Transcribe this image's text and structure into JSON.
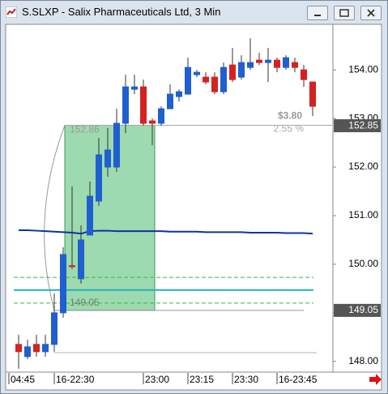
{
  "window_title": "S.SLXP - Salix Pharmaceuticals Ltd, 3 Min",
  "chart_data": {
    "type": "candlestick",
    "categories": [
      "04:45",
      null,
      null,
      null,
      "16-22:30",
      null,
      null,
      null,
      null,
      null,
      null,
      null,
      null,
      null,
      "23:00",
      null,
      null,
      null,
      null,
      "23:15",
      null,
      null,
      null,
      null,
      "23:30",
      null,
      null,
      null,
      null,
      "16-23:45",
      null,
      null,
      null,
      null
    ],
    "open": [
      148.35,
      148.1,
      148.35,
      148.2,
      148.35,
      149.0,
      149.97,
      149.7,
      150.6,
      151.3,
      152.0,
      152.0,
      152.9,
      153.6,
      153.65,
      152.95,
      152.9,
      153.2,
      153.45,
      153.5,
      153.9,
      153.85,
      153.85,
      153.55,
      154.1,
      153.85,
      154.05,
      154.2,
      154.15,
      154.2,
      154.05,
      154.15,
      154.0,
      153.75
    ],
    "high": [
      148.55,
      148.45,
      148.55,
      148.55,
      149.4,
      150.35,
      151.6,
      150.8,
      151.7,
      152.6,
      152.8,
      153.2,
      153.9,
      153.9,
      153.8,
      153.0,
      153.25,
      153.7,
      153.6,
      154.25,
      154.0,
      153.95,
      153.95,
      154.15,
      154.45,
      154.3,
      154.65,
      154.35,
      154.45,
      154.25,
      154.3,
      154.25,
      154.1,
      153.75
    ],
    "low": [
      147.85,
      148.05,
      148.1,
      148.1,
      148.2,
      148.9,
      149.9,
      149.6,
      150.6,
      151.2,
      151.8,
      151.9,
      152.7,
      153.5,
      152.85,
      152.45,
      152.85,
      153.2,
      153.35,
      153.5,
      153.85,
      153.7,
      153.5,
      153.5,
      153.75,
      153.8,
      154.0,
      154.1,
      153.75,
      153.95,
      154.0,
      153.95,
      153.65,
      153.05
    ],
    "close": [
      148.2,
      148.3,
      148.2,
      148.35,
      149.0,
      150.2,
      149.95,
      150.5,
      151.4,
      152.25,
      152.35,
      152.9,
      153.65,
      153.65,
      152.9,
      152.9,
      153.2,
      153.5,
      153.55,
      154.05,
      153.95,
      153.75,
      153.55,
      154.05,
      153.8,
      154.15,
      154.15,
      154.15,
      154.2,
      154.05,
      154.25,
      154.05,
      153.8,
      153.25
    ],
    "up_color": "#1f5fd0",
    "down_color": "#d42222",
    "moving_average": {
      "color": "#1030a8",
      "values": [
        150.7,
        150.7,
        150.69,
        150.68,
        150.67,
        150.66,
        150.65,
        150.63,
        150.68,
        150.69,
        150.69,
        150.68,
        150.68,
        150.68,
        150.68,
        150.68,
        150.68,
        150.67,
        150.67,
        150.67,
        150.67,
        150.66,
        150.66,
        150.66,
        150.66,
        150.66,
        150.65,
        150.65,
        150.65,
        150.65,
        150.64,
        150.64,
        150.64,
        150.63
      ]
    },
    "reference_lines": [
      {
        "value": 149.73,
        "color": "#33bb44",
        "style": "dashed"
      },
      {
        "value": 149.47,
        "color": "#22b0c0",
        "style": "solid"
      },
      {
        "value": 149.2,
        "color": "#33bb44",
        "style": "dashed"
      },
      {
        "value": 148.18,
        "color": "#b0b0b0",
        "style": "solid"
      }
    ],
    "measurement": {
      "start_index": 5,
      "end_index": 15,
      "start": 149.05,
      "end": 152.86,
      "change_label": "$3.80",
      "percent_label": "2.55 %",
      "color": "#5cc27a"
    },
    "price_markers": [
      152.85,
      149.05
    ],
    "ylim": [
      147.78,
      154.92
    ],
    "yticks": [
      {
        "value": 148,
        "label": "148.00"
      },
      {
        "value": 149,
        "label": "149.00"
      },
      {
        "value": 150,
        "label": "150.00"
      },
      {
        "value": 151,
        "label": "151.00"
      },
      {
        "value": 152,
        "label": "152.00"
      },
      {
        "value": 153,
        "label": "153.00"
      },
      {
        "value": 154,
        "label": "154.00"
      }
    ]
  }
}
